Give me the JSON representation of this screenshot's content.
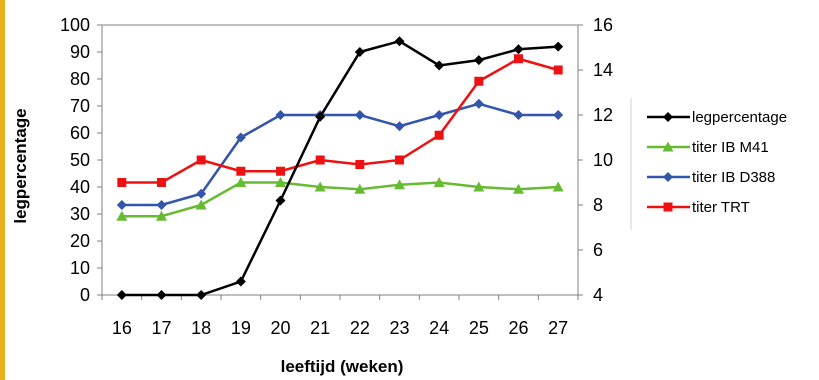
{
  "chart_data": {
    "type": "line",
    "x": [
      16,
      17,
      18,
      19,
      20,
      21,
      22,
      23,
      24,
      25,
      26,
      27
    ],
    "xlabel": "leeftijd (weken)",
    "ylabel": "legpercentage",
    "ylim_left": [
      0,
      100
    ],
    "yticks_left": [
      0,
      10,
      20,
      30,
      40,
      50,
      60,
      70,
      80,
      90,
      100
    ],
    "ylim_right": [
      4,
      16
    ],
    "yticks_right": [
      4,
      6,
      8,
      10,
      12,
      14,
      16
    ],
    "grid": false,
    "legend_position": "right",
    "series": [
      {
        "name": "legpercentage",
        "axis": "left",
        "color": "#000000",
        "marker": "diamond",
        "values": [
          0,
          0,
          0,
          5,
          35,
          66,
          90,
          94,
          85,
          87,
          91,
          92
        ]
      },
      {
        "name": "titer IB M41",
        "axis": "right",
        "color": "#66bb33",
        "marker": "triangle",
        "values": [
          7.5,
          7.5,
          8.0,
          9.0,
          9.0,
          8.8,
          8.7,
          8.9,
          9.0,
          8.8,
          8.7,
          8.8
        ]
      },
      {
        "name": "titer IB D388",
        "axis": "right",
        "color": "#3355aa",
        "marker": "diamond",
        "values": [
          8.0,
          8.0,
          8.5,
          11.0,
          12.0,
          12.0,
          12.0,
          11.5,
          12.0,
          12.5,
          12.0,
          12.0
        ]
      },
      {
        "name": "titer TRT",
        "axis": "right",
        "color": "#ee1111",
        "marker": "square",
        "values": [
          9.0,
          9.0,
          10.0,
          9.5,
          9.5,
          10.0,
          9.8,
          10.0,
          11.1,
          13.5,
          14.5,
          14.0
        ]
      }
    ]
  },
  "colors": {
    "edge_accent": "#e8b020",
    "axis": "#808080"
  }
}
